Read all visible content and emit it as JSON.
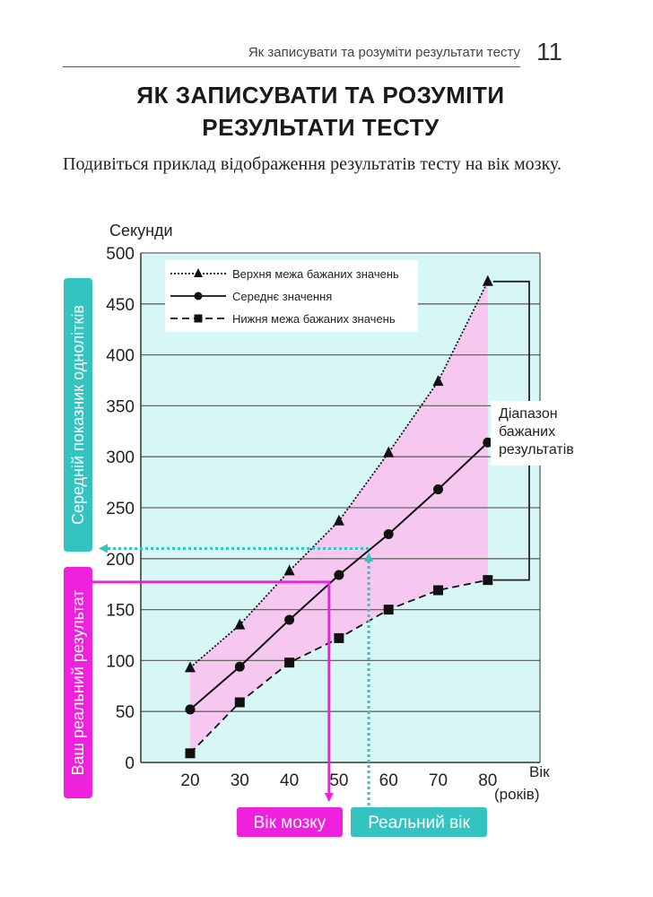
{
  "header": {
    "running_title": "Як записувати та розуміти результати тесту",
    "page_number": "11"
  },
  "title": {
    "line1": "ЯК ЗАПИСУВАТИ ТА РОЗУМІТИ",
    "line2": "РЕЗУЛЬТАТИ ТЕСТУ"
  },
  "intro_text": "Подивіться приклад відображення результатів тесту на вік мозку.",
  "chart_data": {
    "type": "line",
    "ylabel": "Секунди",
    "xlabel_line1": "Вік",
    "xlabel_line2": "(років)",
    "x": [
      20,
      30,
      40,
      50,
      60,
      70,
      80
    ],
    "ylim": [
      0,
      500
    ],
    "y_ticks": [
      0,
      50,
      100,
      150,
      200,
      250,
      300,
      350,
      400,
      450,
      500
    ],
    "grid": "horizontal",
    "legend_position": "top-left",
    "series": [
      {
        "name": "Верхня межа бажаних значень",
        "marker": "triangle",
        "line": "dotted",
        "values": [
          93,
          135,
          188,
          237,
          304,
          374,
          472
        ]
      },
      {
        "name": "Середнє значення",
        "marker": "circle",
        "line": "solid",
        "values": [
          52,
          94,
          140,
          184,
          224,
          268,
          314
        ]
      },
      {
        "name": "Нижня межа бажаних значень",
        "marker": "square",
        "line": "dashed",
        "values": [
          9,
          59,
          98,
          122,
          150,
          169,
          179
        ]
      }
    ],
    "range_label_lines": [
      "Діапазон",
      "бажаних",
      "результатів"
    ],
    "annotations": {
      "actual_result": {
        "value": 177,
        "label": "Ваш реальний результат",
        "color": "#ee22dd"
      },
      "brain_age": {
        "value": 48,
        "label": "Вік мозку",
        "color": "#ee22dd"
      },
      "real_age": {
        "value": 56,
        "label": "Реальний вік",
        "color": "#33c3c0"
      },
      "peer_average": {
        "value": 210,
        "label": "Середній показник однолітків",
        "color": "#33c3c0"
      }
    },
    "colors": {
      "plot_background": "#d6f7f5",
      "range_fill": "#f7c8ef",
      "gridline": "#666666",
      "series_line": "#111111"
    }
  }
}
